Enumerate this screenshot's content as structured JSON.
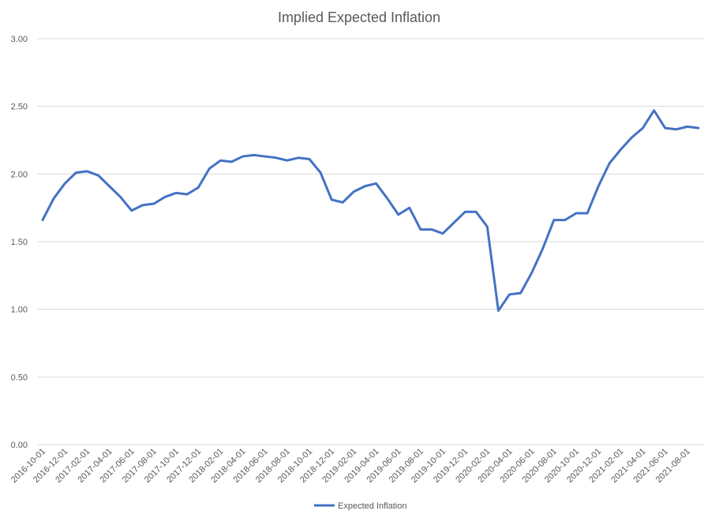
{
  "chart_data": {
    "type": "line",
    "title": "Implied Expected Inflation",
    "xlabel": "",
    "ylabel": "",
    "ylim": [
      0,
      3
    ],
    "yticks": [
      "0.00",
      "0.50",
      "1.00",
      "1.50",
      "2.00",
      "2.50",
      "3.00"
    ],
    "grid": true,
    "legend_position": "bottom",
    "x": [
      "2016-10-01",
      "2016-11-01",
      "2016-12-01",
      "2017-01-01",
      "2017-02-01",
      "2017-03-01",
      "2017-04-01",
      "2017-05-01",
      "2017-06-01",
      "2017-07-01",
      "2017-08-01",
      "2017-09-01",
      "2017-10-01",
      "2017-11-01",
      "2017-12-01",
      "2018-01-01",
      "2018-02-01",
      "2018-03-01",
      "2018-04-01",
      "2018-05-01",
      "2018-06-01",
      "2018-07-01",
      "2018-08-01",
      "2018-09-01",
      "2018-10-01",
      "2018-11-01",
      "2018-12-01",
      "2019-01-01",
      "2019-02-01",
      "2019-03-01",
      "2019-04-01",
      "2019-05-01",
      "2019-06-01",
      "2019-07-01",
      "2019-08-01",
      "2019-09-01",
      "2019-10-01",
      "2019-11-01",
      "2019-12-01",
      "2020-01-01",
      "2020-02-01",
      "2020-03-01",
      "2020-04-01",
      "2020-05-01",
      "2020-06-01",
      "2020-07-01",
      "2020-08-01",
      "2020-09-01",
      "2020-10-01",
      "2020-11-01",
      "2020-12-01",
      "2021-01-01",
      "2021-02-01",
      "2021-03-01",
      "2021-04-01",
      "2021-05-01",
      "2021-06-01",
      "2021-07-01",
      "2021-08-01",
      "2021-09-01"
    ],
    "x_tick_labels": [
      "2016-10-01",
      "2016-12-01",
      "2017-02-01",
      "2017-04-01",
      "2017-06-01",
      "2017-08-01",
      "2017-10-01",
      "2017-12-01",
      "2018-02-01",
      "2018-04-01",
      "2018-06-01",
      "2018-08-01",
      "2018-10-01",
      "2018-12-01",
      "2019-02-01",
      "2019-04-01",
      "2019-06-01",
      "2019-08-01",
      "2019-10-01",
      "2019-12-01",
      "2020-02-01",
      "2020-04-01",
      "2020-06-01",
      "2020-08-01",
      "2020-10-01",
      "2020-12-01",
      "2021-02-01",
      "2021-04-01",
      "2021-06-01",
      "2021-08-01"
    ],
    "series": [
      {
        "name": "Expected Inflation",
        "color": "#4472c4",
        "values": [
          1.66,
          1.82,
          1.93,
          2.01,
          2.02,
          1.99,
          1.91,
          1.83,
          1.73,
          1.77,
          1.78,
          1.83,
          1.86,
          1.85,
          1.9,
          2.04,
          2.1,
          2.09,
          2.13,
          2.14,
          2.13,
          2.12,
          2.1,
          2.12,
          2.11,
          2.01,
          1.81,
          1.79,
          1.87,
          1.91,
          1.93,
          1.82,
          1.7,
          1.75,
          1.59,
          1.59,
          1.56,
          1.64,
          1.72,
          1.72,
          1.61,
          0.99,
          1.11,
          1.12,
          1.27,
          1.45,
          1.66,
          1.66,
          1.71,
          1.71,
          1.91,
          2.08,
          2.18,
          2.27,
          2.34,
          2.47,
          2.34,
          2.33,
          2.35,
          2.34
        ]
      }
    ]
  }
}
